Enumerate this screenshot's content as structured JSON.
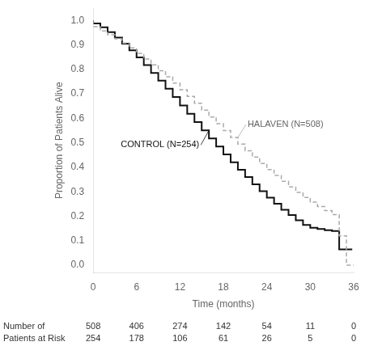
{
  "chart_data": {
    "type": "line",
    "xlabel": "Time (months)",
    "ylabel": "Proportion of Patients Alive",
    "xlim": [
      0,
      36
    ],
    "xticks": [
      0,
      6,
      12,
      18,
      24,
      30,
      36
    ],
    "ylim": [
      -0.03,
      1.05
    ],
    "yticks": [
      {
        "value": 0,
        "label": "0.0"
      },
      0.1,
      0.2,
      0.3,
      0.4,
      0.5,
      0.6,
      0.7,
      0.8,
      0.9,
      {
        "value": 1,
        "label": "1.0"
      }
    ],
    "grid": false,
    "series": [
      {
        "name": "HALAVEN (N=508)",
        "color": "#aaaaaa",
        "line_style": "dashed",
        "x": [
          0,
          1,
          2,
          3,
          4,
          5,
          6,
          7,
          8,
          9,
          10,
          11,
          12,
          13,
          14,
          15,
          16,
          17,
          18,
          19,
          20,
          21,
          22,
          23,
          24,
          25,
          26,
          27,
          28,
          29,
          30,
          31,
          32,
          33,
          34,
          35,
          36
        ],
        "values": [
          1.0,
          0.975,
          0.957,
          0.942,
          0.925,
          0.908,
          0.888,
          0.866,
          0.843,
          0.819,
          0.795,
          0.77,
          0.744,
          0.717,
          0.69,
          0.662,
          0.634,
          0.606,
          0.578,
          0.55,
          0.522,
          0.495,
          0.468,
          0.442,
          0.416,
          0.391,
          0.367,
          0.343,
          0.32,
          0.298,
          0.277,
          0.258,
          0.24,
          0.223,
          0.207,
          0.12,
          0.0
        ]
      },
      {
        "name": "CONTROL (N=254)",
        "color": "#111111",
        "line_style": "solid",
        "x": [
          0,
          1,
          2,
          3,
          4,
          5,
          6,
          7,
          8,
          9,
          10,
          11,
          12,
          13,
          14,
          15,
          16,
          17,
          18,
          19,
          20,
          21,
          22,
          23,
          24,
          25,
          26,
          27,
          28,
          29,
          30,
          31,
          32,
          33,
          34,
          35,
          35.8
        ],
        "values": [
          1.0,
          0.988,
          0.972,
          0.952,
          0.93,
          0.905,
          0.878,
          0.849,
          0.818,
          0.786,
          0.754,
          0.721,
          0.687,
          0.653,
          0.619,
          0.585,
          0.551,
          0.518,
          0.485,
          0.453,
          0.421,
          0.39,
          0.36,
          0.331,
          0.303,
          0.276,
          0.251,
          0.227,
          0.205,
          0.184,
          0.165,
          0.153,
          0.148,
          0.143,
          0.14,
          0.065,
          0.065
        ]
      }
    ],
    "risk_table": {
      "row_labels": [
        "Number of",
        "Patients at Risk"
      ],
      "times": [
        0,
        6,
        12,
        18,
        24,
        30,
        36
      ],
      "rows": [
        [
          508,
          406,
          274,
          142,
          54,
          11,
          0
        ],
        [
          254,
          178,
          106,
          61,
          26,
          5,
          0
        ]
      ]
    }
  }
}
